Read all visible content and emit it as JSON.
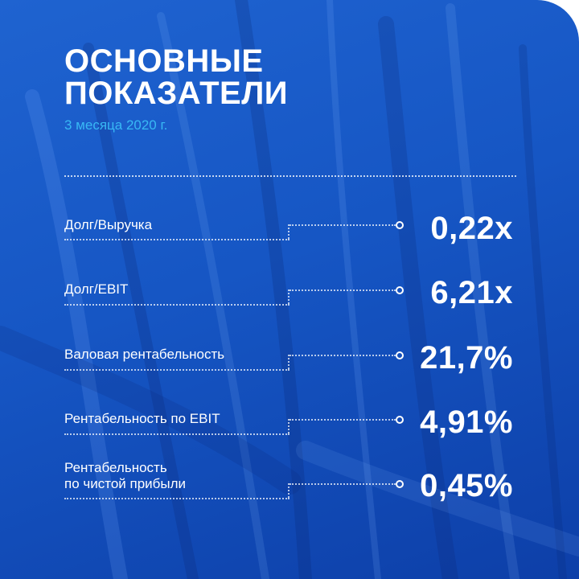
{
  "header": {
    "title_line1": "ОСНОВНЫЕ",
    "title_line2": "ПОКАЗАТЕЛИ",
    "subtitle": "3 месяца 2020 г."
  },
  "colors": {
    "background": "#1656c4",
    "accent_subtitle": "#38b8f4",
    "text": "#ffffff"
  },
  "metrics": [
    {
      "label_line1": "Долг/Выручка",
      "label_line2": "",
      "value": "0,22x"
    },
    {
      "label_line1": "Долг/EBIT",
      "label_line2": "",
      "value": "6,21x"
    },
    {
      "label_line1": "Валовая рентабельность",
      "label_line2": "",
      "value": "21,7%"
    },
    {
      "label_line1": "Рентабельность по EBIT",
      "label_line2": "",
      "value": "4,91%"
    },
    {
      "label_line1": "Рентабельность",
      "label_line2": "по чистой прибыли",
      "value": "0,45%"
    }
  ]
}
